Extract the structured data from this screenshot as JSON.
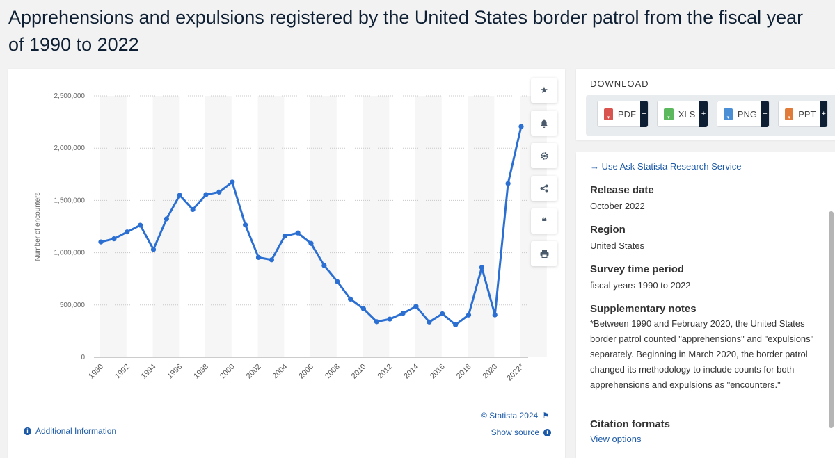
{
  "title": "Apprehensions and expulsions registered by the United States border patrol from the fiscal year of 1990 to 2022",
  "chart_data": {
    "type": "line",
    "title": "",
    "xlabel": "",
    "ylabel": "Number of encounters",
    "ylim": [
      0,
      2500000
    ],
    "y_ticks": [
      "0",
      "500,000",
      "1,000,000",
      "1,500,000",
      "2,000,000",
      "2,500,000"
    ],
    "x_tick_labels": [
      "1990",
      "1992",
      "1994",
      "1996",
      "1998",
      "2000",
      "2002",
      "2004",
      "2006",
      "2008",
      "2010",
      "2012",
      "2014",
      "2016",
      "2018",
      "2020",
      "2022*"
    ],
    "categories": [
      "1990",
      "1991",
      "1992",
      "1993",
      "1994",
      "1995",
      "1996",
      "1997",
      "1998",
      "1999",
      "2000",
      "2001",
      "2002",
      "2003",
      "2004",
      "2005",
      "2006",
      "2007",
      "2008",
      "2009",
      "2010",
      "2011",
      "2012",
      "2013",
      "2014",
      "2015",
      "2016",
      "2017",
      "2018",
      "2019",
      "2020",
      "2021",
      "2022*"
    ],
    "series": [
      {
        "values": [
          1103000,
          1133000,
          1199000,
          1263000,
          1031000,
          1324000,
          1550000,
          1413000,
          1555000,
          1580000,
          1676000,
          1266000,
          955000,
          932000,
          1160000,
          1189000,
          1089000,
          877000,
          724000,
          556000,
          463000,
          340000,
          365000,
          420000,
          487000,
          337000,
          416000,
          310000,
          404000,
          859000,
          405000,
          1662000,
          2207000
        ]
      }
    ],
    "grid": true,
    "line_color": "#2a6fd1"
  },
  "toolbar": {
    "icons": [
      "star-icon",
      "bell-icon",
      "gear-icon",
      "share-icon",
      "quote-icon",
      "print-icon"
    ]
  },
  "footer": {
    "credit": "© Statista 2024",
    "additional_info": "Additional Information",
    "show_source": "Show source"
  },
  "download": {
    "heading": "DOWNLOAD",
    "buttons": [
      {
        "label": "PDF",
        "color": "#d9534f"
      },
      {
        "label": "XLS",
        "color": "#5cb85c"
      },
      {
        "label": "PNG",
        "color": "#4a8fd6"
      },
      {
        "label": "PPT",
        "color": "#e07b39"
      }
    ]
  },
  "meta": {
    "ask_link": "→  Use Ask Statista Research Service",
    "release_date_label": "Release date",
    "release_date": "October 2022",
    "region_label": "Region",
    "region": "United States",
    "survey_label": "Survey time period",
    "survey": "fiscal years 1990 to 2022",
    "notes_label": "Supplementary notes",
    "notes": "*Between 1990 and February 2020, the United States border patrol counted \"apprehensions\" and \"expulsions\" separately. Beginning in March 2020, the border patrol changed its methodology to include counts for both apprehensions and expulsions as \"encounters.\"",
    "citation_label": "Citation formats",
    "view_options": "View options"
  }
}
